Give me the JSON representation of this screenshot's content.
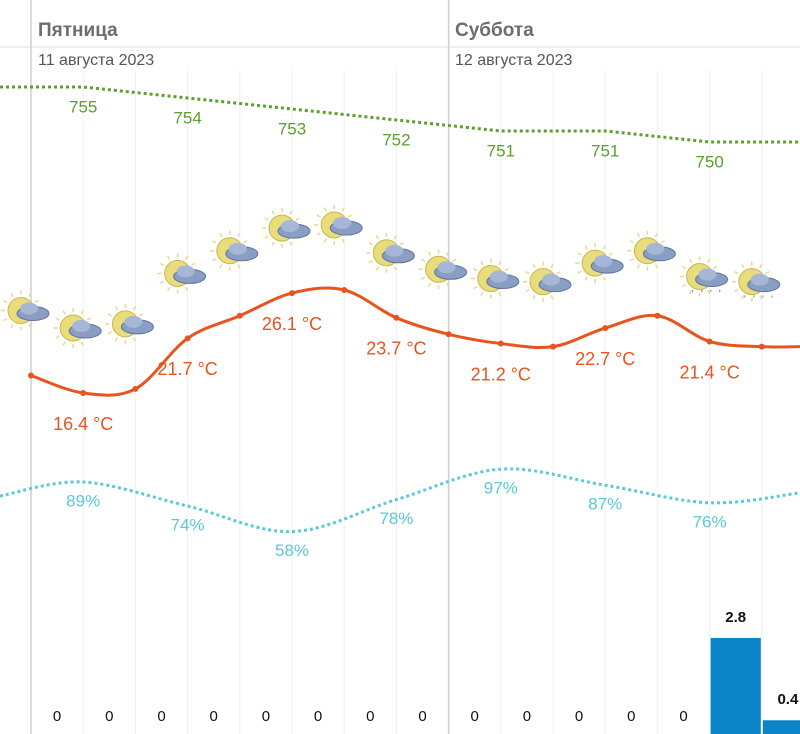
{
  "chart_data": {
    "type": "weather",
    "days": [
      {
        "name": "Пятница",
        "date": "11 августа 2023"
      },
      {
        "name": "Суббота",
        "date": "12 августа 2023"
      }
    ],
    "pressure": {
      "color": "#5aa02c",
      "values": [
        755,
        754,
        753,
        752,
        751,
        751,
        750
      ]
    },
    "temperature": {
      "color": "#e8541e",
      "values": [
        18.1,
        16.4,
        16.8,
        21.7,
        23.9,
        26.1,
        26.4,
        23.7,
        22.1,
        21.2,
        20.9,
        22.7,
        23.9,
        21.4,
        20.9
      ],
      "value_labels": [
        null,
        "16.4 °C",
        null,
        "21.7 °C",
        null,
        "26.1 °C",
        null,
        "23.7 °C",
        null,
        "21.2 °C",
        null,
        "22.7 °C",
        null,
        "21.4 °C",
        null
      ]
    },
    "humidity": {
      "color": "#5bc8dc",
      "values": [
        89,
        74,
        58,
        78,
        97,
        87,
        76
      ],
      "value_labels": [
        "89%",
        "74%",
        "58%",
        "78%",
        "97%",
        "87%",
        "76%"
      ]
    },
    "precipitation": {
      "color": "#0a84c6",
      "values": [
        0,
        0,
        0,
        0,
        0,
        0,
        0,
        0,
        0,
        0,
        0,
        0,
        0,
        2.8,
        0.4
      ]
    }
  }
}
